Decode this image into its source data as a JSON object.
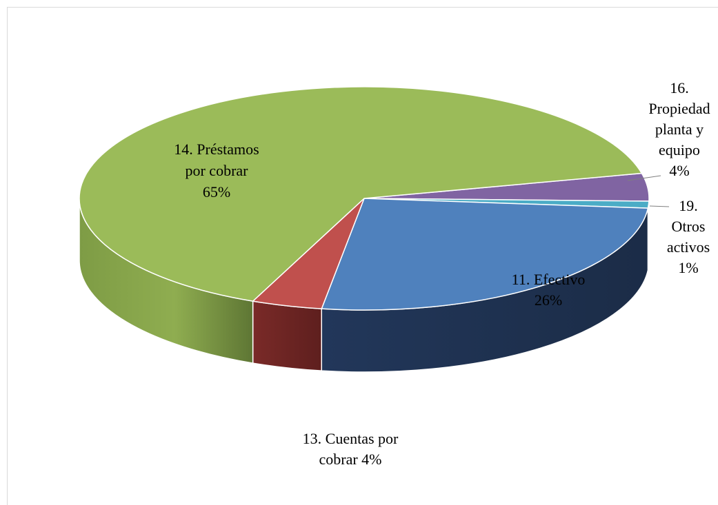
{
  "chart_data": {
    "type": "pie",
    "title": "",
    "slices": [
      {
        "label": "11. Efectivo",
        "value": 26,
        "display": "26%",
        "color": "#4F81BD",
        "side": "#1F3150"
      },
      {
        "label": "13. Cuentas por cobrar",
        "value": 4,
        "display": "4%",
        "color": "#C0504D",
        "side": "#6B2422"
      },
      {
        "label": "14. Préstamos por cobrar",
        "value": 65,
        "display": "65%",
        "color": "#9BBB59",
        "side": "#6E8A3A"
      },
      {
        "label": "16. Propiedad planta y equipo",
        "value": 4,
        "display": "4%",
        "color": "#8064A2",
        "side": "#4E3A66"
      },
      {
        "label": "19. Otros activos",
        "value": 1,
        "display": "1%",
        "color": "#4BACC6",
        "side": "#2A6E80"
      }
    ],
    "legend": "none",
    "style": "3d"
  },
  "labels": {
    "efectivo": [
      "11. Efectivo",
      "26%"
    ],
    "cuentas": [
      "13. Cuentas por",
      "cobrar 4%"
    ],
    "prestamos": [
      "14. Préstamos",
      "por cobrar",
      "65%"
    ],
    "propiedad": [
      "16.",
      "Propiedad",
      "planta y",
      "equipo",
      "4%"
    ],
    "otros": [
      "19.",
      "Otros",
      "activos",
      "1%"
    ]
  }
}
